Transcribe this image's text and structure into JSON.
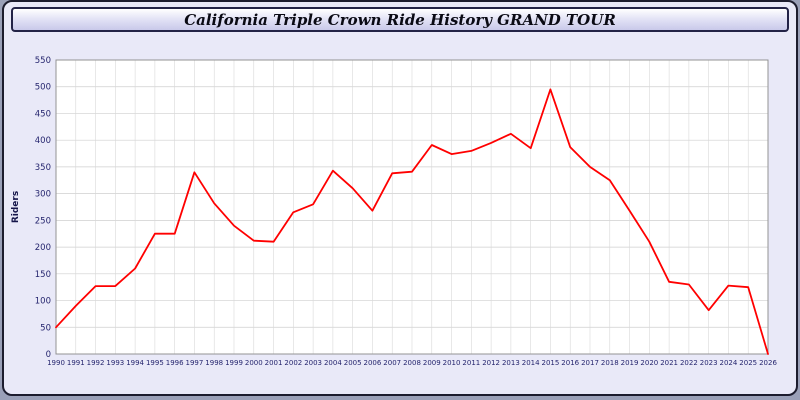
{
  "title_bar": {
    "title": "California Triple Crown Ride History GRAND TOUR"
  },
  "chart_data": {
    "type": "line",
    "title": "California Triple Crown Ride History GRAND TOUR",
    "xlabel": "",
    "ylabel": "Riders",
    "ylim": [
      0,
      550
    ],
    "ytick_step": 50,
    "grid": true,
    "legend": "none",
    "line_color": "#ff0000",
    "plot_bg": "#ffffff",
    "page_bg": "#e9e9f8",
    "categories": [
      "1990",
      "1991",
      "1992",
      "1993",
      "1994",
      "1995",
      "1996",
      "1997",
      "1998",
      "1999",
      "2000",
      "2001",
      "2002",
      "2003",
      "2004",
      "2005",
      "2006",
      "2007",
      "2008",
      "2009",
      "2010",
      "2011",
      "2012",
      "2013",
      "2014",
      "2015",
      "2016",
      "2017",
      "2018",
      "2019",
      "2020",
      "2021",
      "2022",
      "2023",
      "2024",
      "2025",
      "2026"
    ],
    "values": [
      50,
      90,
      127,
      127,
      160,
      225,
      225,
      340,
      282,
      240,
      212,
      210,
      265,
      280,
      343,
      310,
      268,
      338,
      341,
      391,
      374,
      380,
      395,
      412,
      385,
      495,
      387,
      350,
      325,
      268,
      210,
      135,
      130,
      82,
      128,
      125,
      0
    ]
  }
}
